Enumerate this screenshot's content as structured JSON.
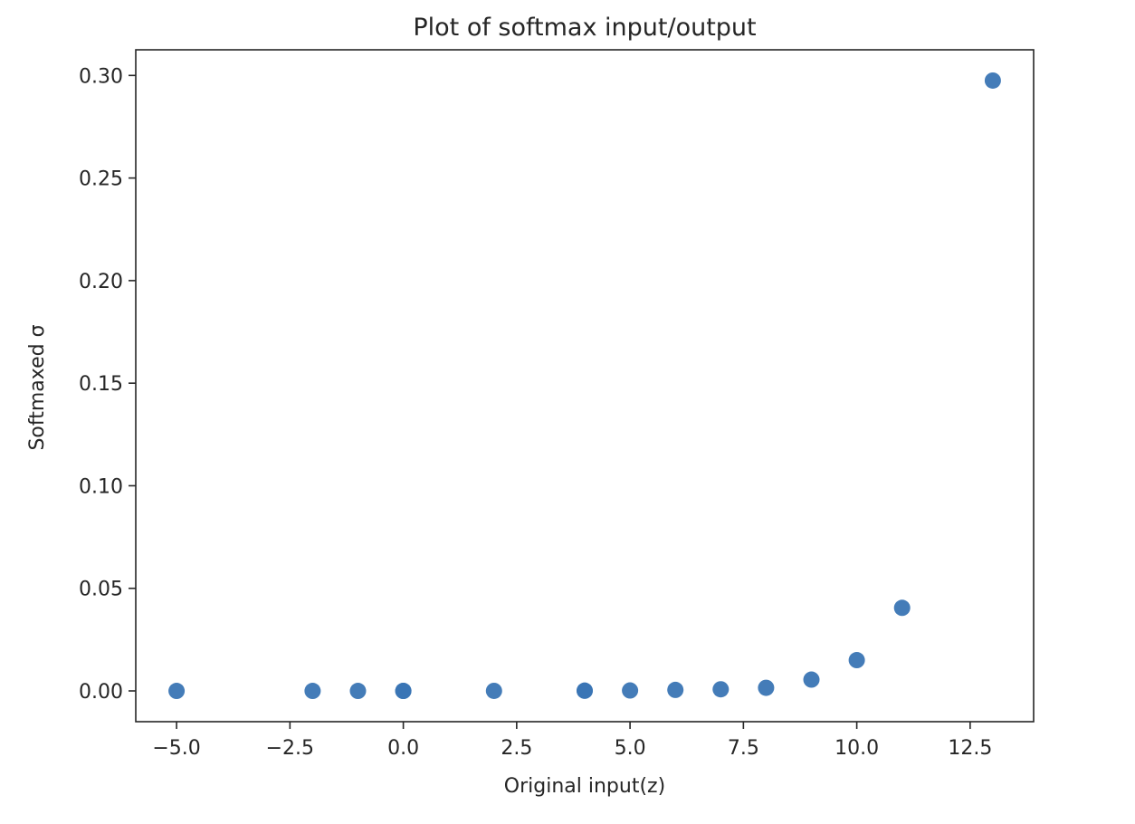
{
  "chart_data": {
    "type": "scatter",
    "title": "Plot of softmax input/output",
    "xlabel": "Original input(z)",
    "ylabel": "Softmaxed σ",
    "xlim": [
      -5.9,
      13.9
    ],
    "ylim": [
      -0.015,
      0.3125
    ],
    "x_ticks": [
      -5.0,
      -2.5,
      0.0,
      2.5,
      5.0,
      7.5,
      10.0,
      12.5
    ],
    "x_tick_labels": [
      "−5.0",
      "−2.5",
      "0.0",
      "2.5",
      "5.0",
      "7.5",
      "10.0",
      "12.5"
    ],
    "y_ticks": [
      0.0,
      0.05,
      0.1,
      0.15,
      0.2,
      0.25,
      0.3
    ],
    "y_tick_labels": [
      "0.00",
      "0.05",
      "0.10",
      "0.15",
      "0.20",
      "0.25",
      "0.30"
    ],
    "grid": false,
    "color": "#3a75b4",
    "series": [
      {
        "x": [
          -5,
          -2,
          -1,
          0,
          0,
          2,
          4,
          4,
          5,
          6,
          7,
          8,
          9,
          10,
          11,
          13
        ],
        "y": [
          0.0,
          0.0,
          0.0,
          0.0,
          0.0,
          1e-05,
          0.0001,
          0.0001,
          0.0002,
          0.0005,
          0.0008,
          0.0015,
          0.0055,
          0.015,
          0.0405,
          0.2975
        ]
      }
    ]
  }
}
